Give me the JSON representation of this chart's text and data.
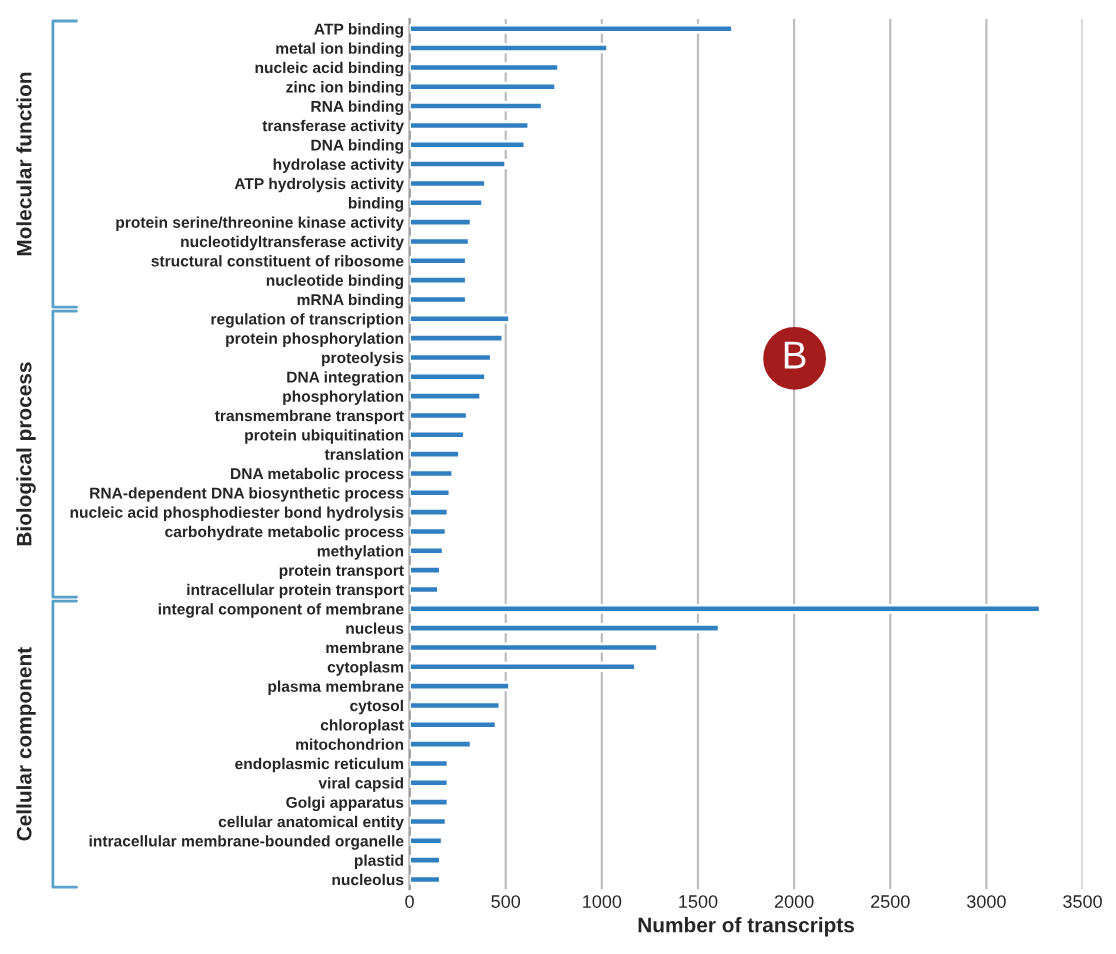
{
  "chart_data": {
    "type": "bar",
    "orientation": "horizontal",
    "categories": [
      "ATP binding",
      "metal ion binding",
      "nucleic acid binding",
      "zinc ion binding",
      "RNA binding",
      "transferase activity",
      "DNA binding",
      "hydrolase activity",
      "ATP hydrolysis activity",
      "binding",
      "protein serine/threonine kinase activity",
      "nucleotidyltransferase activity",
      "structural constituent of ribosome",
      "nucleotide binding",
      "mRNA binding",
      "regulation of transcription",
      "protein phosphorylation",
      "proteolysis",
      "DNA integration",
      "phosphorylation",
      "transmembrane transport",
      "protein ubiquitination",
      "translation",
      "DNA metabolic process",
      "RNA-dependent DNA biosynthetic process",
      "nucleic acid phosphodiester bond hydrolysis",
      "carbohydrate metabolic process",
      "methylation",
      "protein transport",
      "intracellular protein transport",
      "integral component of membrane",
      "nucleus",
      "membrane",
      "cytoplasm",
      "plasma membrane",
      "cytosol",
      "chloroplast",
      "mitochondrion",
      "endoplasmic reticulum",
      "viral capsid",
      "Golgi apparatus",
      "cellular anatomical entity",
      "intracellular membrane-bounded organelle",
      "plastid",
      "nucleolus"
    ],
    "values": [
      1680,
      1030,
      775,
      760,
      690,
      620,
      600,
      500,
      395,
      380,
      320,
      310,
      295,
      295,
      295,
      520,
      485,
      425,
      395,
      370,
      300,
      285,
      260,
      225,
      210,
      200,
      190,
      175,
      160,
      150,
      3280,
      1610,
      1290,
      1175,
      520,
      470,
      450,
      320,
      200,
      200,
      200,
      190,
      170,
      160,
      160
    ],
    "color": "#2f7fc1",
    "xlim": [
      0,
      3500
    ],
    "xticks": [
      0,
      500,
      1000,
      1500,
      2000,
      2500,
      3000,
      3500
    ],
    "xlabel": "Number of transcripts",
    "grid": "x",
    "annotations": [
      "Molecular function",
      "Biological process",
      "Cellular component",
      "B"
    ]
  }
}
